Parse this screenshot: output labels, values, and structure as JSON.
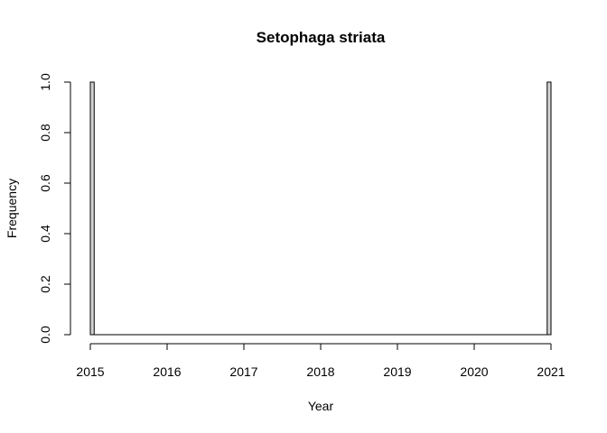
{
  "chart_data": {
    "type": "bar",
    "title": "Setophaga striata",
    "xlabel": "Year",
    "ylabel": "Frequency",
    "xlim": [
      2015,
      2021
    ],
    "ylim": [
      0,
      1
    ],
    "x_ticks": [
      "2015",
      "2016",
      "2017",
      "2018",
      "2019",
      "2020",
      "2021"
    ],
    "y_ticks": [
      "0.0",
      "0.2",
      "0.4",
      "0.6",
      "0.8",
      "1.0"
    ],
    "bin_width": 0.05,
    "bins": [
      {
        "start": 2015.0,
        "end": 2015.05,
        "count": 1
      },
      {
        "start": 2020.95,
        "end": 2021.0,
        "count": 1
      }
    ],
    "bar_fill": "#d3d3d3",
    "bar_stroke": "#000000",
    "grid": false,
    "legend": "none"
  }
}
